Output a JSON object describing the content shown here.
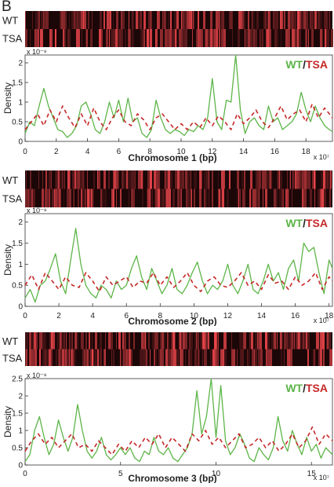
{
  "panel_label": "B",
  "legend": {
    "wt": "WT",
    "sep": "/",
    "tsa": "TSA"
  },
  "colors": {
    "wt": "#5db548",
    "tsa": "#c62828",
    "heat_dark": "#1c0708",
    "heat_bright": "#e8454a",
    "axis": "#333333"
  },
  "chart_data": [
    {
      "type": "line",
      "heatmap_labels": [
        "WT",
        "TSA"
      ],
      "xlabel": "Chromosome 1 (bp)",
      "ylabel": "Density",
      "y_exponent": "x 10⁻⁸",
      "x_exponent": "x 10⁷",
      "xlim": [
        0,
        19.7
      ],
      "ylim": [
        0,
        2.2
      ],
      "xticks": [
        0,
        2,
        4,
        6,
        8,
        10,
        12,
        14,
        16,
        18
      ],
      "xtick_labels": [
        "0",
        "2",
        "4",
        "6",
        "8",
        "10",
        "12",
        "14",
        "16",
        "18"
      ],
      "yticks": [
        0,
        0.5,
        1,
        1.5,
        2
      ],
      "ytick_labels": [
        "0",
        "0.5",
        "1",
        "1.5",
        "2"
      ],
      "series": [
        {
          "name": "WT",
          "style": "solid",
          "x": [
            0,
            0.3,
            0.6,
            0.9,
            1.2,
            1.5,
            1.8,
            2.1,
            2.4,
            2.7,
            3.0,
            3.3,
            3.6,
            3.9,
            4.2,
            4.5,
            4.8,
            5.1,
            5.4,
            5.7,
            6.0,
            6.3,
            6.6,
            6.9,
            7.2,
            7.5,
            7.8,
            8.1,
            8.4,
            8.7,
            9.0,
            9.3,
            9.6,
            9.9,
            10.2,
            10.5,
            10.8,
            11.1,
            11.4,
            11.7,
            12.0,
            12.3,
            12.6,
            12.9,
            13.2,
            13.5,
            13.8,
            14.1,
            14.4,
            14.7,
            15.0,
            15.3,
            15.6,
            15.9,
            16.2,
            16.5,
            16.8,
            17.1,
            17.4,
            17.7,
            18.0,
            18.3,
            18.6,
            18.9,
            19.2,
            19.5,
            19.7
          ],
          "y": [
            0.2,
            0.5,
            0.4,
            0.9,
            1.35,
            0.9,
            0.6,
            0.3,
            0.25,
            0.1,
            0.2,
            0.4,
            0.9,
            1.0,
            0.7,
            0.3,
            0.2,
            0.5,
            1.0,
            0.6,
            1.05,
            0.5,
            1.1,
            0.5,
            0.6,
            0.2,
            0.1,
            0.3,
            1.05,
            0.6,
            0.3,
            0.2,
            0.3,
            0.25,
            0.15,
            0.3,
            0.25,
            0.4,
            0.3,
            0.6,
            1.6,
            0.5,
            0.3,
            1.05,
            1.0,
            2.2,
            0.8,
            0.2,
            0.5,
            0.6,
            0.4,
            0.3,
            0.9,
            0.5,
            0.6,
            0.3,
            0.4,
            0.5,
            0.7,
            1.25,
            0.8,
            0.5,
            0.9,
            0.6,
            0.4,
            0.3,
            0.25
          ]
        },
        {
          "name": "TSA",
          "style": "dashed",
          "x": [
            0,
            0.4,
            0.8,
            1.2,
            1.6,
            2.0,
            2.4,
            2.8,
            3.2,
            3.6,
            4.0,
            4.4,
            4.8,
            5.2,
            5.6,
            6.0,
            6.4,
            6.8,
            7.2,
            7.6,
            8.0,
            8.4,
            8.8,
            9.2,
            9.6,
            10.0,
            10.4,
            10.8,
            11.2,
            11.6,
            12.0,
            12.4,
            12.8,
            13.2,
            13.6,
            14.0,
            14.4,
            14.8,
            15.2,
            15.6,
            16.0,
            16.4,
            16.8,
            17.2,
            17.6,
            18.0,
            18.4,
            18.8,
            19.2,
            19.7
          ],
          "y": [
            0.3,
            0.5,
            0.7,
            0.4,
            0.8,
            0.5,
            0.9,
            0.6,
            0.35,
            0.7,
            0.4,
            0.85,
            0.5,
            0.3,
            0.6,
            0.8,
            0.5,
            0.4,
            0.7,
            0.55,
            0.3,
            0.6,
            0.7,
            0.5,
            0.3,
            0.45,
            0.3,
            0.5,
            0.35,
            0.6,
            0.4,
            0.65,
            0.5,
            0.3,
            0.7,
            0.45,
            0.6,
            0.8,
            0.5,
            0.35,
            0.6,
            0.9,
            0.55,
            0.7,
            0.8,
            0.5,
            0.95,
            0.6,
            0.85,
            0.6
          ]
        }
      ]
    },
    {
      "type": "line",
      "heatmap_labels": [
        "WT",
        "TSA"
      ],
      "xlabel": "Chromosome 2 (bp)",
      "ylabel": "Density",
      "y_exponent": "x 10⁻⁸",
      "x_exponent": "x 10⁷",
      "xlim": [
        0,
        18.2
      ],
      "ylim": [
        0,
        2.2
      ],
      "xticks": [
        0,
        2,
        4,
        6,
        8,
        10,
        12,
        14,
        16,
        18
      ],
      "xtick_labels": [
        "0",
        "2",
        "4",
        "6",
        "8",
        "10",
        "12",
        "14",
        "16",
        "18"
      ],
      "yticks": [
        0,
        0.5,
        1,
        1.5,
        2
      ],
      "ytick_labels": [
        "0",
        "0.5",
        "1",
        "1.5",
        "2"
      ],
      "series": [
        {
          "name": "WT",
          "style": "solid",
          "x": [
            0,
            0.3,
            0.6,
            0.9,
            1.2,
            1.5,
            1.8,
            2.1,
            2.4,
            2.7,
            3.0,
            3.3,
            3.6,
            3.9,
            4.2,
            4.5,
            4.8,
            5.1,
            5.4,
            5.7,
            6.0,
            6.3,
            6.6,
            6.9,
            7.2,
            7.5,
            7.8,
            8.1,
            8.4,
            8.7,
            9.0,
            9.3,
            9.6,
            9.9,
            10.2,
            10.5,
            10.8,
            11.1,
            11.4,
            11.7,
            12.0,
            12.3,
            12.6,
            12.9,
            13.2,
            13.5,
            13.8,
            14.1,
            14.4,
            14.7,
            15.0,
            15.3,
            15.6,
            15.9,
            16.2,
            16.5,
            16.8,
            17.1,
            17.4,
            17.7,
            18.0,
            18.2
          ],
          "y": [
            0.2,
            0.4,
            0.1,
            0.5,
            0.6,
            0.9,
            1.25,
            0.6,
            0.3,
            1.1,
            1.85,
            1.0,
            0.5,
            0.3,
            0.2,
            0.5,
            0.4,
            0.2,
            0.6,
            0.4,
            0.5,
            0.9,
            1.2,
            0.7,
            0.4,
            0.9,
            0.6,
            0.3,
            0.5,
            0.9,
            0.4,
            0.3,
            0.5,
            0.8,
            1.05,
            0.6,
            0.3,
            0.5,
            0.4,
            0.6,
            1.0,
            0.5,
            0.3,
            0.6,
            1.0,
            0.4,
            0.3,
            0.6,
            1.0,
            0.6,
            0.8,
            0.4,
            0.9,
            1.1,
            0.6,
            1.5,
            1.3,
            1.4,
            0.8,
            0.3,
            1.1,
            0.9
          ]
        },
        {
          "name": "TSA",
          "style": "dashed",
          "x": [
            0,
            0.4,
            0.8,
            1.2,
            1.6,
            2.0,
            2.4,
            2.8,
            3.2,
            3.6,
            4.0,
            4.4,
            4.8,
            5.2,
            5.6,
            6.0,
            6.4,
            6.8,
            7.2,
            7.6,
            8.0,
            8.4,
            8.8,
            9.2,
            9.6,
            10.0,
            10.4,
            10.8,
            11.2,
            11.6,
            12.0,
            12.4,
            12.8,
            13.2,
            13.6,
            14.0,
            14.4,
            14.8,
            15.2,
            15.6,
            16.0,
            16.4,
            16.8,
            17.2,
            17.6,
            18.0,
            18.2
          ],
          "y": [
            0.5,
            0.75,
            0.4,
            0.8,
            0.6,
            0.4,
            0.7,
            0.5,
            0.45,
            0.8,
            0.6,
            0.35,
            0.7,
            0.5,
            0.6,
            0.7,
            0.45,
            0.6,
            0.55,
            0.8,
            0.5,
            0.7,
            0.45,
            0.6,
            0.8,
            0.5,
            0.35,
            0.6,
            0.7,
            0.5,
            0.45,
            0.6,
            0.8,
            0.5,
            0.6,
            0.4,
            0.75,
            0.55,
            0.6,
            0.4,
            0.7,
            0.5,
            0.6,
            0.8,
            0.4,
            0.7,
            0.6
          ]
        }
      ]
    },
    {
      "type": "line",
      "heatmap_labels": [
        "WT",
        "TSA"
      ],
      "xlabel": "Chromosome 3 (bp)",
      "ylabel": "Density",
      "y_exponent": "x 10⁻⁸",
      "x_exponent": "x 10⁷",
      "xlim": [
        0,
        16.1
      ],
      "ylim": [
        0,
        2.5
      ],
      "xticks": [
        0,
        5,
        10,
        15
      ],
      "xtick_labels": [
        "0",
        "5",
        "10",
        "15"
      ],
      "yticks": [
        0,
        0.5,
        1,
        1.5,
        2,
        2.5
      ],
      "ytick_labels": [
        "0",
        "0.5",
        "1",
        "1.5",
        "2",
        "2.5"
      ],
      "series": [
        {
          "name": "WT",
          "style": "solid",
          "x": [
            0,
            0.25,
            0.5,
            0.75,
            1.0,
            1.25,
            1.5,
            1.75,
            2.0,
            2.25,
            2.5,
            2.75,
            3.0,
            3.25,
            3.5,
            3.75,
            4.0,
            4.25,
            4.5,
            4.75,
            5.0,
            5.25,
            5.5,
            5.75,
            6.0,
            6.25,
            6.5,
            6.75,
            7.0,
            7.25,
            7.5,
            7.75,
            8.0,
            8.25,
            8.5,
            8.75,
            9.0,
            9.25,
            9.5,
            9.75,
            10.0,
            10.25,
            10.5,
            10.75,
            11.0,
            11.25,
            11.5,
            11.75,
            12.0,
            12.25,
            12.5,
            12.75,
            13.0,
            13.25,
            13.5,
            13.75,
            14.0,
            14.25,
            14.5,
            14.75,
            15.0,
            15.25,
            15.5,
            15.75,
            16.1
          ],
          "y": [
            0.1,
            0.3,
            1.0,
            1.4,
            0.8,
            0.3,
            0.6,
            1.3,
            0.8,
            0.4,
            0.8,
            1.75,
            1.0,
            0.4,
            0.2,
            0.4,
            0.8,
            0.3,
            0.15,
            0.3,
            0.5,
            0.3,
            0.5,
            0.2,
            0.1,
            0.4,
            0.3,
            0.8,
            0.4,
            0.3,
            0.5,
            0.2,
            0.1,
            0.3,
            0.5,
            0.9,
            2.15,
            0.9,
            1.4,
            2.5,
            0.8,
            2.3,
            0.7,
            0.3,
            0.5,
            0.9,
            0.6,
            0.2,
            0.1,
            0.5,
            0.3,
            0.15,
            0.5,
            1.4,
            0.7,
            0.4,
            1.0,
            0.6,
            0.3,
            0.8,
            0.4,
            0.6,
            0.2,
            0.5,
            0.3
          ]
        },
        {
          "name": "TSA",
          "style": "dashed",
          "x": [
            0,
            0.35,
            0.7,
            1.05,
            1.4,
            1.75,
            2.1,
            2.45,
            2.8,
            3.15,
            3.5,
            3.85,
            4.2,
            4.55,
            4.9,
            5.25,
            5.6,
            5.95,
            6.3,
            6.65,
            7.0,
            7.35,
            7.7,
            8.05,
            8.4,
            8.75,
            9.1,
            9.45,
            9.8,
            10.15,
            10.5,
            10.85,
            11.2,
            11.55,
            11.9,
            12.25,
            12.6,
            12.95,
            13.3,
            13.65,
            14.0,
            14.35,
            14.7,
            15.05,
            15.4,
            15.75,
            16.1
          ],
          "y": [
            0.4,
            0.7,
            0.9,
            0.6,
            0.8,
            0.5,
            0.7,
            0.9,
            0.5,
            0.6,
            0.4,
            0.7,
            0.5,
            0.3,
            0.6,
            0.4,
            0.7,
            0.5,
            0.8,
            0.6,
            0.9,
            0.5,
            0.8,
            0.6,
            0.4,
            0.9,
            0.7,
            1.0,
            0.6,
            0.8,
            0.5,
            0.7,
            0.9,
            0.5,
            0.6,
            0.8,
            0.5,
            0.7,
            0.4,
            0.6,
            0.9,
            0.5,
            0.7,
            1.1,
            0.6,
            0.9,
            0.7
          ]
        }
      ]
    }
  ]
}
